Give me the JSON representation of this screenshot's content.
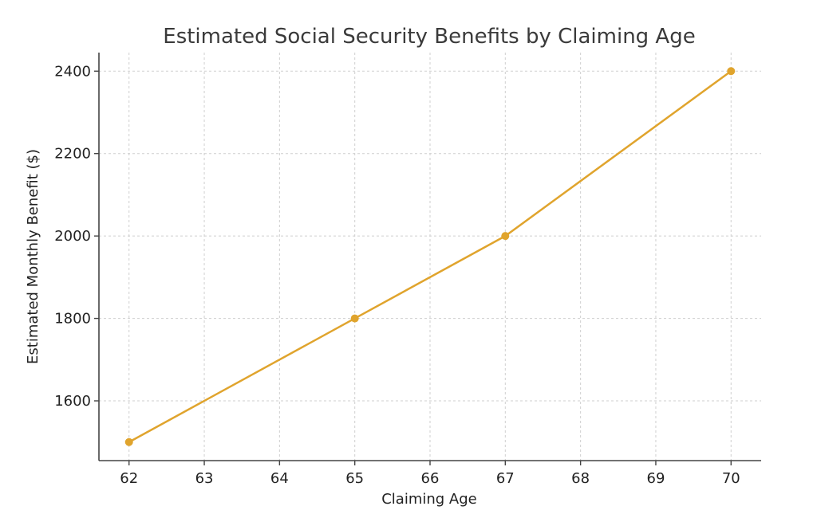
{
  "chart_data": {
    "type": "line",
    "title": "Estimated Social Security Benefits by Claiming Age",
    "xlabel": "Claiming Age",
    "ylabel": "Estimated Monthly Benefit ($)",
    "xlim": [
      61.6,
      70.4
    ],
    "ylim": [
      1455,
      2445
    ],
    "x_ticks": [
      62,
      63,
      64,
      65,
      66,
      67,
      68,
      69,
      70
    ],
    "y_ticks": [
      1600,
      1800,
      2000,
      2200,
      2400
    ],
    "grid": true,
    "series": [
      {
        "color": "#e0a42d",
        "x": [
          62,
          65,
          67,
          70
        ],
        "y": [
          1500,
          1800,
          2000,
          2400
        ]
      }
    ]
  }
}
